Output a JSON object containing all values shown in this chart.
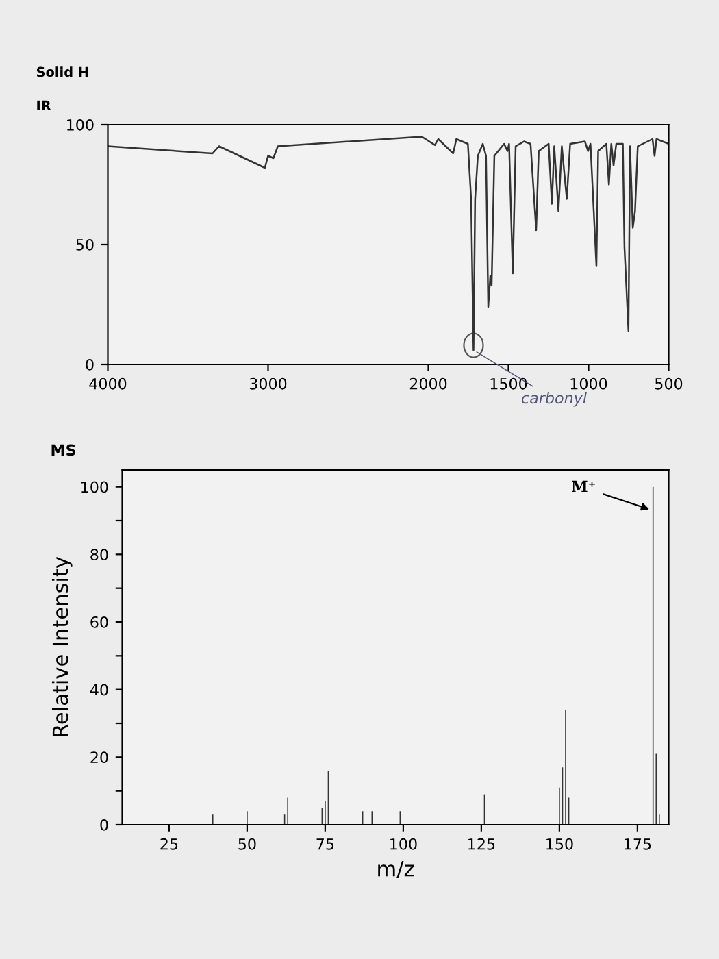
{
  "chart_data": [
    {
      "type": "line",
      "title": "Solid H",
      "subtitle": "IR",
      "xlim": [
        4000,
        500
      ],
      "ylim": [
        0,
        100
      ],
      "xticks": [
        4000,
        3000,
        2000,
        1500,
        1000,
        500
      ],
      "yticks": [
        0,
        50,
        100
      ],
      "grid": false,
      "marker": "none",
      "line_style": "solid",
      "annotations": [
        {
          "text": "carbonyl",
          "x": 1718,
          "y": 6
        }
      ],
      "series": [
        {
          "color": "#333333",
          "x": [
            4000,
            3347,
            3306,
            3020,
            3000,
            2967,
            2939,
            2041,
            1959,
            1938,
            1845,
            1825,
            1753,
            1733,
            1718,
            1708,
            1691,
            1660,
            1640,
            1626,
            1613,
            1605,
            1588,
            1527,
            1506,
            1496,
            1473,
            1455,
            1403,
            1362,
            1327,
            1311,
            1249,
            1229,
            1214,
            1188,
            1167,
            1136,
            1115,
            1023,
            1003,
            988,
            951,
            940,
            889,
            873,
            858,
            844,
            827,
            786,
            776,
            751,
            741,
            724,
            710,
            693,
            601,
            588,
            576,
            500
          ],
          "values": [
            91,
            88,
            91,
            82,
            87,
            86,
            91,
            95,
            91.5,
            94,
            88,
            94,
            92,
            69,
            6,
            69,
            87,
            92,
            87,
            24,
            37,
            33,
            87,
            92,
            89,
            92,
            38,
            91,
            93,
            92,
            56,
            89,
            92,
            67,
            91,
            64,
            91,
            69,
            92,
            93,
            89,
            92,
            41,
            89,
            92,
            75,
            92,
            83,
            92,
            92,
            49,
            14,
            91,
            57,
            64,
            91,
            94,
            87,
            94,
            92
          ]
        }
      ]
    },
    {
      "type": "bar",
      "title": "MS",
      "xlabel": "m/z",
      "ylabel": "Relative Intensity",
      "xlim": [
        10,
        185
      ],
      "ylim": [
        0,
        105
      ],
      "xticks": [
        25,
        50,
        75,
        100,
        125,
        150,
        175
      ],
      "yticks": [
        0,
        {
          "value": 10,
          "label": null
        },
        20,
        {
          "value": 30,
          "label": null
        },
        40,
        {
          "value": 50,
          "label": null
        },
        60,
        {
          "value": 70,
          "label": null
        },
        80,
        {
          "value": 90,
          "label": null
        },
        100
      ],
      "grid": false,
      "annotations": [
        {
          "text": "M⁺",
          "x": 180,
          "y": 93
        }
      ],
      "series": [
        {
          "color": "#333333",
          "x": [
            39,
            50,
            62,
            63,
            74,
            75,
            76,
            87,
            90,
            99,
            126,
            150,
            151,
            152,
            153,
            180,
            181,
            182
          ],
          "values": [
            3,
            4,
            3,
            8,
            5,
            7,
            16,
            4,
            4,
            4,
            9,
            11,
            17,
            34,
            8,
            100,
            21,
            3
          ]
        }
      ]
    }
  ]
}
